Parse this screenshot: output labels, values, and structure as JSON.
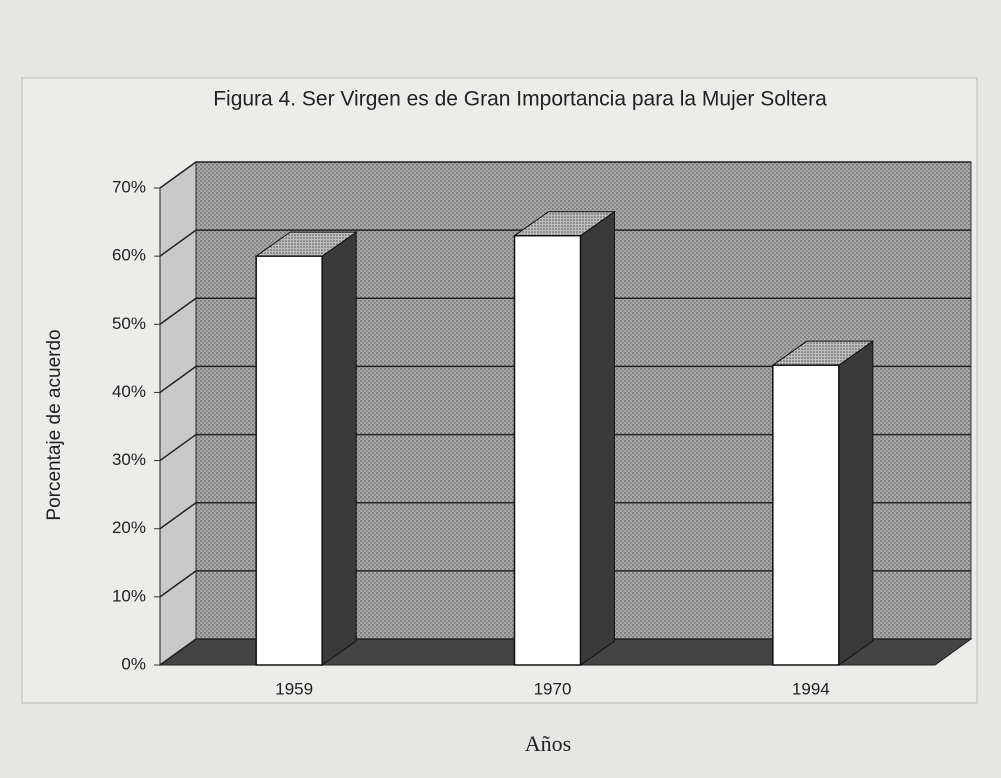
{
  "chart_data": {
    "type": "bar3d",
    "title": "Figura 4. Ser Virgen es de Gran Importancia para la Mujer Soltera",
    "x_label": "Años",
    "y_label": "Porcentaje de acuerdo",
    "categories": [
      "1959",
      "1970",
      "1994"
    ],
    "values": [
      60,
      63,
      44
    ],
    "color": "#ffffff",
    "side_color": "#3a3a3a",
    "wall_color": "#9a9a9a",
    "ylim": [
      0,
      70
    ],
    "yticks": [
      {
        "value": 0,
        "label": "0%"
      },
      {
        "value": 10,
        "label": "10%"
      },
      {
        "value": 20,
        "label": "20%"
      },
      {
        "value": 30,
        "label": "30%"
      },
      {
        "value": 40,
        "label": "40%"
      },
      {
        "value": 50,
        "label": "50%"
      },
      {
        "value": 60,
        "label": "60%"
      },
      {
        "value": 70,
        "label": "70%"
      }
    ],
    "grid": true
  }
}
